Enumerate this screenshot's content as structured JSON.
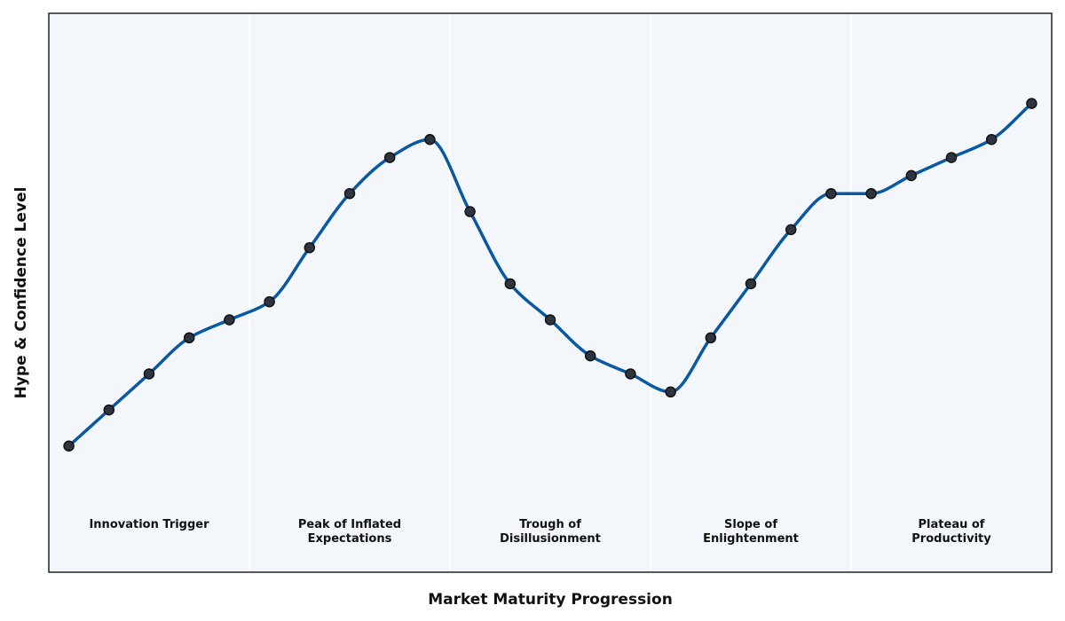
{
  "chart_data": {
    "type": "line",
    "title": "",
    "xlabel": "Market Maturity Progression",
    "ylabel": "Hype & Confidence Level",
    "x": [
      1,
      2,
      3,
      4,
      5,
      6,
      7,
      8,
      9,
      10,
      11,
      12,
      13,
      14,
      15,
      16,
      17,
      18,
      19,
      20,
      21,
      22,
      23,
      24,
      25
    ],
    "series": [
      {
        "values": [
          1.0,
          2.0,
          3.0,
          4.0,
          4.5,
          5.0,
          6.5,
          8.0,
          9.0,
          9.5,
          7.5,
          5.5,
          4.5,
          3.5,
          3.0,
          2.5,
          4.0,
          5.5,
          7.0,
          8.0,
          8.0,
          8.5,
          9.0,
          9.5,
          10.5
        ]
      }
    ],
    "xlim": [
      0.5,
      25.5
    ],
    "ylim": [
      -2.5,
      13.0
    ],
    "phases": [
      {
        "lines": [
          "Innovation Trigger"
        ],
        "x_center": 3
      },
      {
        "lines": [
          "Peak of Inflated",
          "Expectations"
        ],
        "x_center": 8
      },
      {
        "lines": [
          "Trough of",
          "Disillusionment"
        ],
        "x_center": 13
      },
      {
        "lines": [
          "Slope of",
          "Enlightenment"
        ],
        "x_center": 18
      },
      {
        "lines": [
          "Plateau of",
          "Productivity"
        ],
        "x_center": 23
      }
    ],
    "phase_dividers": [
      5.5,
      10.5,
      15.5,
      20.5
    ],
    "x_ticks_shown": false,
    "y_ticks_shown": false,
    "grid": false,
    "legend": "none",
    "colors": {
      "line": "#0a58a0",
      "marker_fill": "#2e3440",
      "marker_edge": "#111111",
      "plot_background": "#f3f7fb",
      "frame": "#222222",
      "divider": "#ffffff"
    }
  }
}
